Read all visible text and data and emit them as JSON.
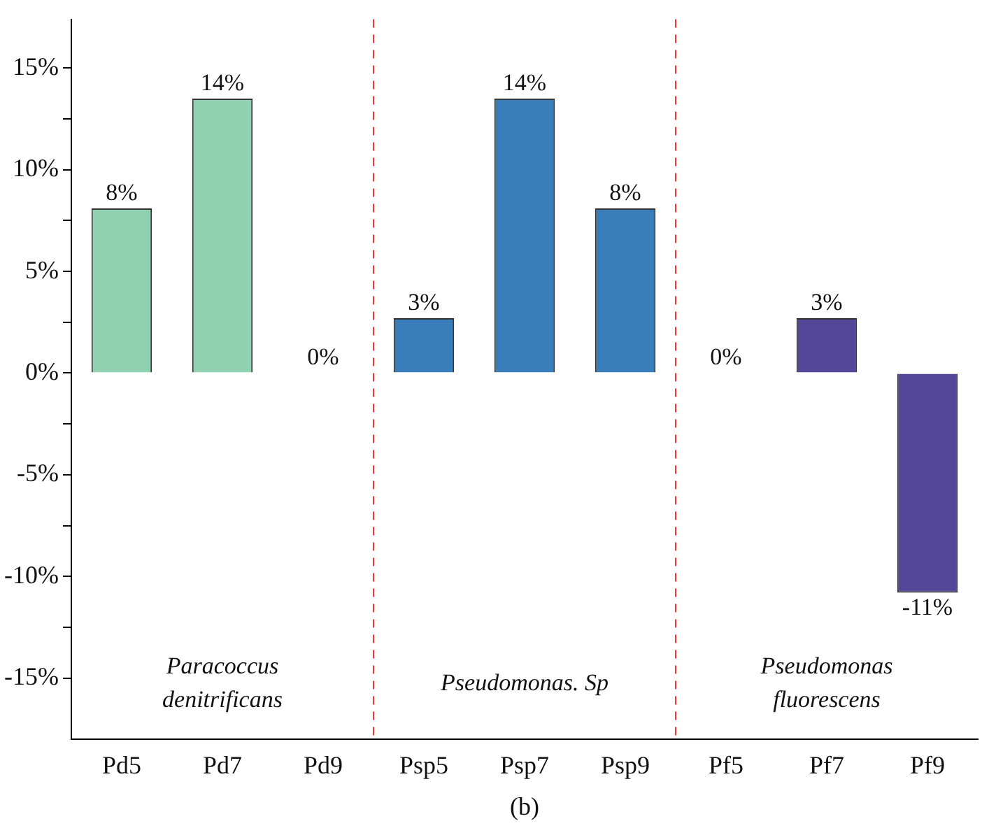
{
  "chart_data": {
    "type": "bar",
    "categories": [
      "Pd5",
      "Pd7",
      "Pd9",
      "Psp5",
      "Psp7",
      "Psp9",
      "Pf5",
      "Pf7",
      "Pf9"
    ],
    "values": [
      8.1,
      13.5,
      0,
      2.7,
      13.5,
      8.1,
      0,
      2.7,
      -10.8
    ],
    "colors": [
      "#8fd1b0",
      "#8fd1b0",
      "#8fd1b0",
      "#3a7dbb",
      "#3a7dbb",
      "#3a7dbb",
      "#54479a",
      "#54479a",
      "#54479a"
    ],
    "value_labels": [
      "8%",
      "14%",
      "0%",
      "3%",
      "14%",
      "8%",
      "0%",
      "3%",
      "-11%"
    ],
    "ylim": [
      -18,
      17.4
    ],
    "yticks": [
      {
        "value": -15,
        "label": "-15%"
      },
      {
        "value": -12.5,
        "label": null
      },
      {
        "value": -10,
        "label": "-10%"
      },
      {
        "value": -7.5,
        "label": null
      },
      {
        "value": -5,
        "label": "-5%"
      },
      {
        "value": -2.5,
        "label": null
      },
      {
        "value": 0,
        "label": "0%"
      },
      {
        "value": 2.5,
        "label": null
      },
      {
        "value": 5,
        "label": "5%"
      },
      {
        "value": 7.5,
        "label": null
      },
      {
        "value": 10,
        "label": "10%"
      },
      {
        "value": 12.5,
        "label": null
      },
      {
        "value": 15,
        "label": "15%"
      }
    ],
    "annotations": [
      "Paracoccus denitrificans",
      "Pseudomonas. Sp",
      "Pseudomonas fluorescens",
      "(b)"
    ],
    "grid": false,
    "legend": false
  }
}
